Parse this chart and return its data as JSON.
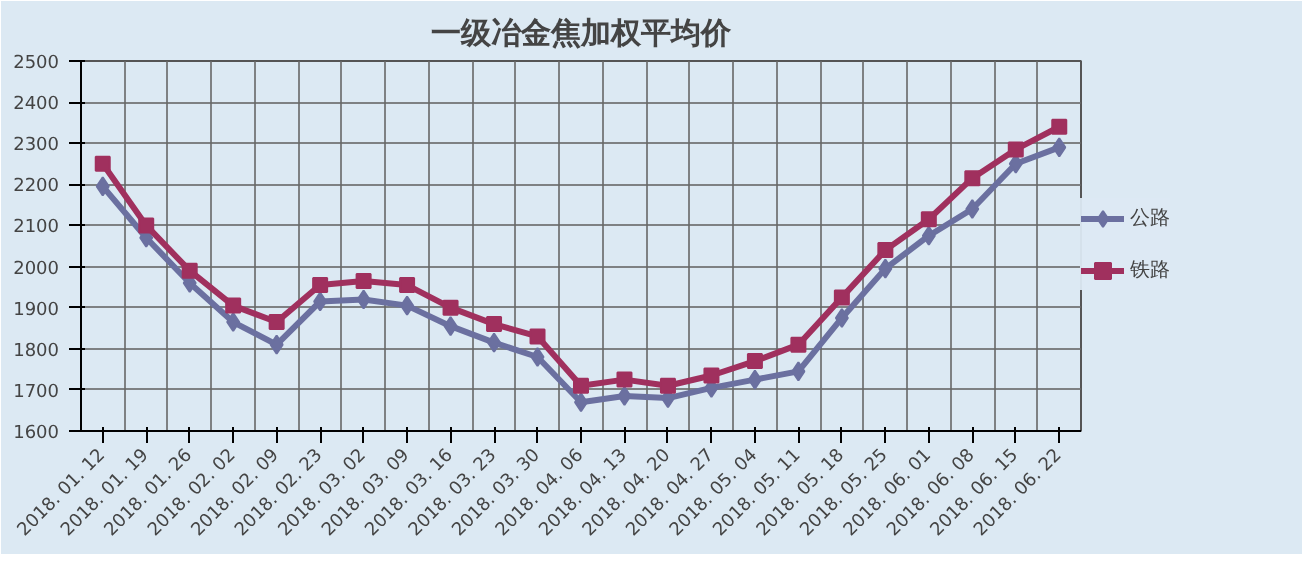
{
  "chart_data": {
    "type": "line",
    "title": "一级冶金焦加权平均价",
    "categories": [
      "2018. 01. 12",
      "2018. 01. 19",
      "2018. 01. 26",
      "2018. 02. 02",
      "2018. 02. 09",
      "2018. 02. 23",
      "2018. 03. 02",
      "2018. 03. 09",
      "2018. 03. 16",
      "2018. 03. 23",
      "2018. 03. 30",
      "2018. 04. 06",
      "2018. 04. 13",
      "2018. 04. 20",
      "2018. 04. 27",
      "2018. 05. 04",
      "2018. 05. 11",
      "2018. 05. 18",
      "2018. 05. 25",
      "2018. 06. 01",
      "2018. 06. 08",
      "2018. 06. 15",
      "2018. 06. 22"
    ],
    "series": [
      {
        "name": "公路",
        "color": "#6b70a0",
        "marker": "diamond",
        "values": [
          2195,
          2070,
          1960,
          1865,
          1810,
          1915,
          1920,
          1905,
          1855,
          1815,
          1780,
          1670,
          1685,
          1680,
          1705,
          1725,
          1745,
          1875,
          1995,
          2075,
          2140,
          2250,
          2290
        ]
      },
      {
        "name": "铁路",
        "color": "#a0305e",
        "marker": "square",
        "values": [
          2250,
          2100,
          1990,
          1905,
          1865,
          1955,
          1965,
          1955,
          1900,
          1860,
          1830,
          1710,
          1725,
          1710,
          1735,
          1770,
          1810,
          1925,
          2040,
          2115,
          2215,
          2285,
          2340
        ]
      }
    ],
    "ylim": [
      1600,
      2500
    ],
    "yticks": [
      1600,
      1700,
      1800,
      1900,
      2000,
      2100,
      2200,
      2300,
      2400,
      2500
    ],
    "grid": true,
    "legend": "right"
  }
}
